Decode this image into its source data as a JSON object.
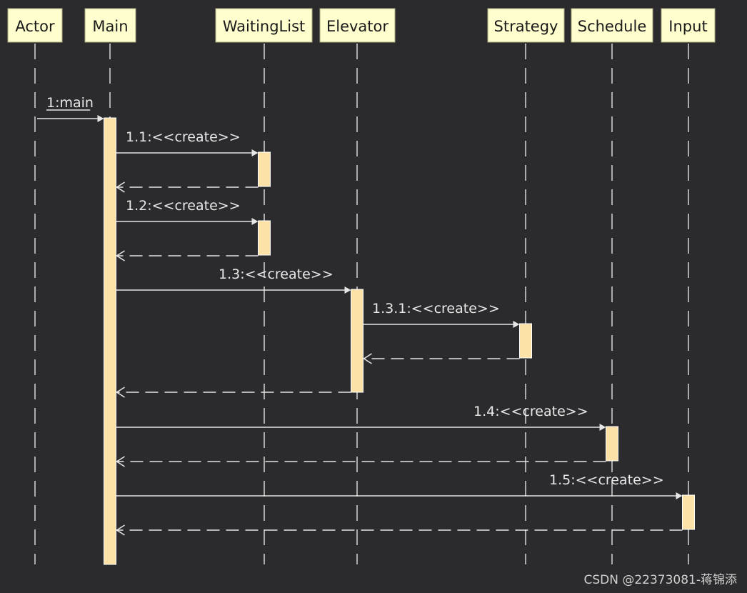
{
  "diagram": {
    "participants": [
      {
        "id": "actor",
        "label": "Actor"
      },
      {
        "id": "main",
        "label": "Main"
      },
      {
        "id": "waitinglist",
        "label": "WaitingList"
      },
      {
        "id": "elevator",
        "label": "Elevator"
      },
      {
        "id": "strategy",
        "label": "Strategy"
      },
      {
        "id": "schedule",
        "label": "Schedule"
      },
      {
        "id": "input",
        "label": "Input"
      }
    ],
    "messages": [
      {
        "from": "actor",
        "to": "main",
        "label": "1:main",
        "type": "call",
        "underline": true
      },
      {
        "from": "main",
        "to": "waitinglist",
        "label": "1.1:<<create>>",
        "type": "call"
      },
      {
        "from": "waitinglist",
        "to": "main",
        "label": "",
        "type": "return"
      },
      {
        "from": "main",
        "to": "waitinglist",
        "label": "1.2:<<create>>",
        "type": "call"
      },
      {
        "from": "waitinglist",
        "to": "main",
        "label": "",
        "type": "return"
      },
      {
        "from": "main",
        "to": "elevator",
        "label": "1.3:<<create>>",
        "type": "call"
      },
      {
        "from": "elevator",
        "to": "strategy",
        "label": "1.3.1:<<create>>",
        "type": "call"
      },
      {
        "from": "strategy",
        "to": "elevator",
        "label": "",
        "type": "return"
      },
      {
        "from": "elevator",
        "to": "main",
        "label": "",
        "type": "return"
      },
      {
        "from": "main",
        "to": "schedule",
        "label": "1.4:<<create>>",
        "type": "call"
      },
      {
        "from": "schedule",
        "to": "main",
        "label": "",
        "type": "return"
      },
      {
        "from": "main",
        "to": "input",
        "label": "1.5:<<create>>",
        "type": "call"
      },
      {
        "from": "input",
        "to": "main",
        "label": "",
        "type": "return"
      }
    ]
  },
  "watermark": "CSDN @22373081-蒋锦添"
}
